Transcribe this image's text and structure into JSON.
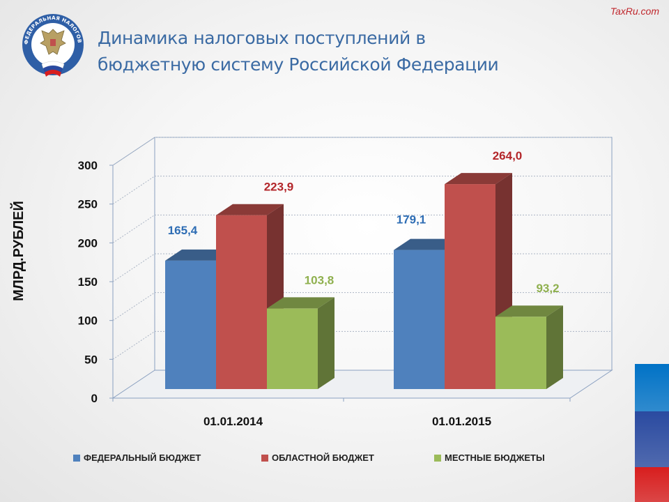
{
  "watermark": "TaxRu.com",
  "header": {
    "title_line1": "Динамика налоговых поступлений в",
    "title_line2": "бюджетную систему Российской Федерации",
    "logo_text": "ФЕДЕРАЛЬНАЯ НАЛОГОВАЯ СЛУЖБА"
  },
  "chart_data": {
    "type": "bar",
    "ylabel": "МЛРД.РУБЛЕЙ",
    "categories": [
      "01.01.2014",
      "01.01.2015"
    ],
    "ylim": [
      0,
      300
    ],
    "yticks": [
      0,
      50,
      100,
      150,
      200,
      250,
      300
    ],
    "grid": true,
    "legend_position": "bottom",
    "series": [
      {
        "name": "ФЕДЕРАЛЬНЫЙ БЮДЖЕТ",
        "values": [
          165.4,
          179.1
        ],
        "labels": [
          "165,4",
          "179,1"
        ],
        "color": "#4f81bd",
        "label_color": "#2e6db4"
      },
      {
        "name": "ОБЛАСТНОЙ БЮДЖЕТ",
        "values": [
          223.9,
          264.0
        ],
        "labels": [
          "223,9",
          "264,0"
        ],
        "color": "#c0504d",
        "label_color": "#b3262a"
      },
      {
        "name": "МЕСТНЫЕ БЮДЖЕТЫ",
        "values": [
          103.8,
          93.2
        ],
        "labels": [
          "103,8",
          "93,2"
        ],
        "color": "#9bbb59",
        "label_color": "#8fb04e"
      }
    ]
  },
  "decor": {
    "flag_colors": [
      "#0072c6",
      "#2a4aa0",
      "#d81e1e"
    ]
  }
}
